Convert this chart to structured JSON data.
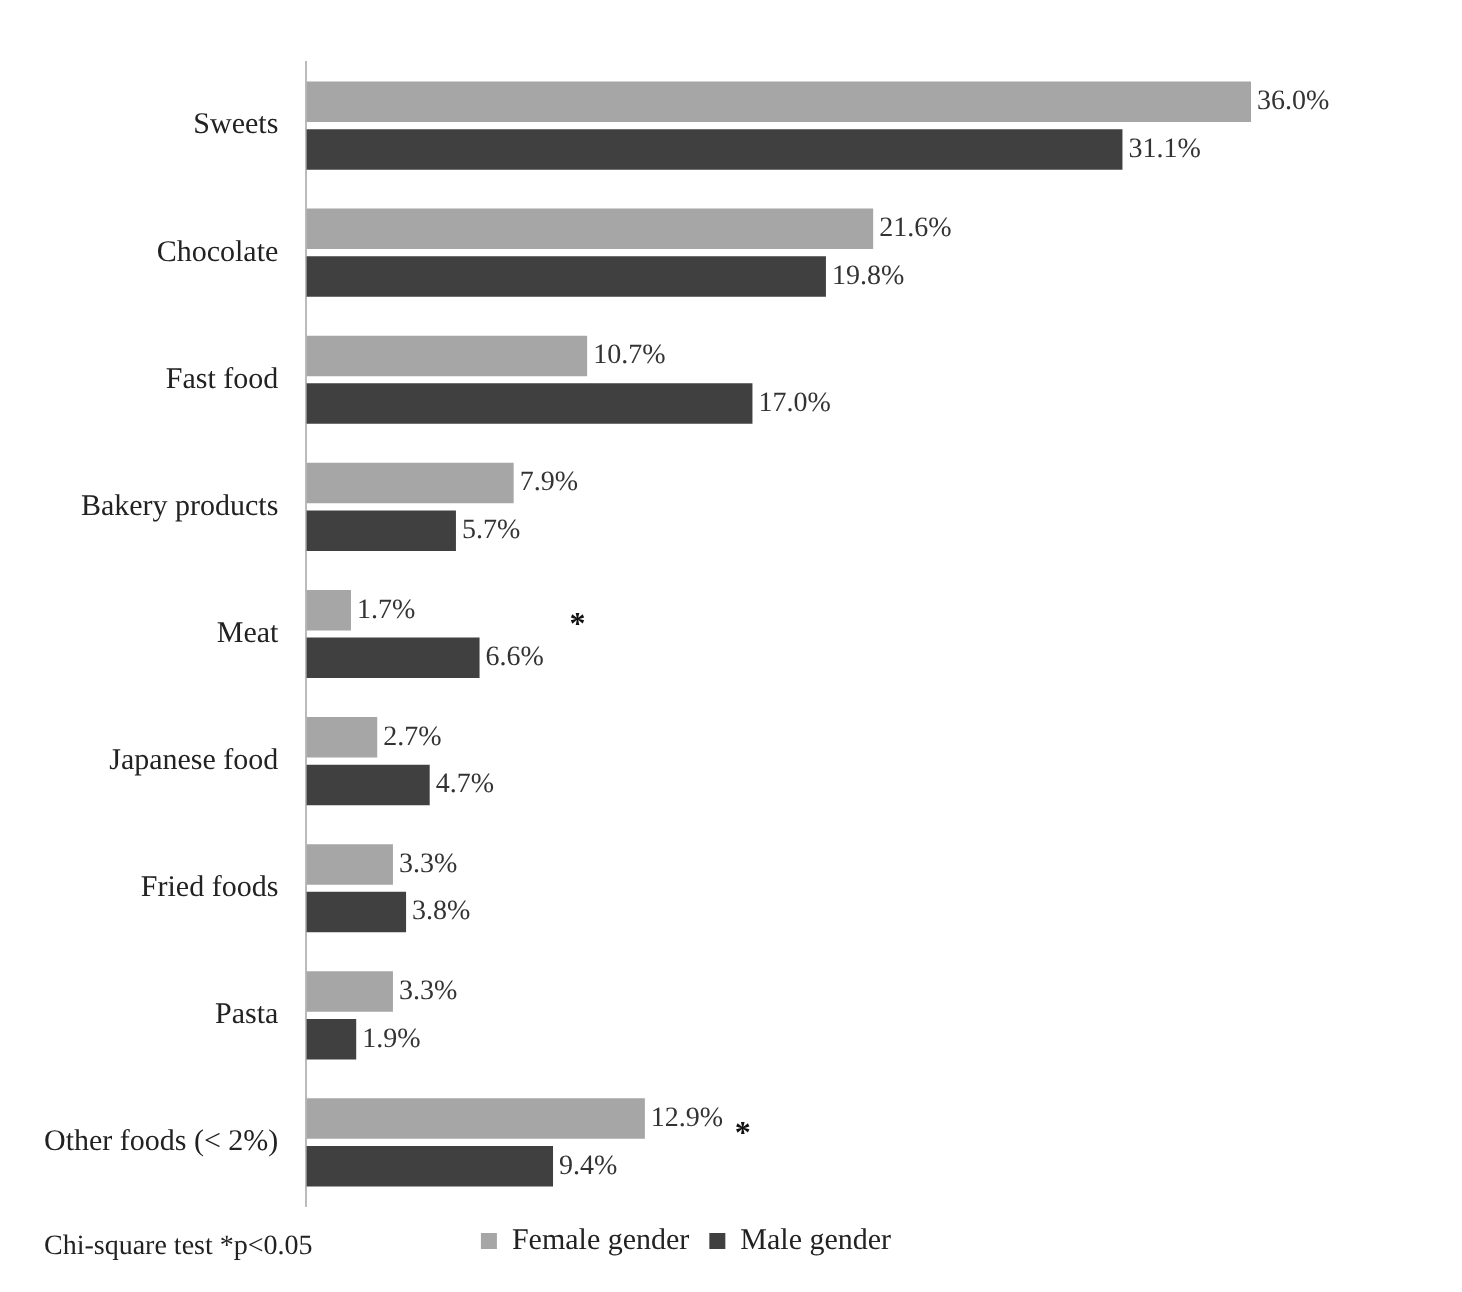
{
  "chart_data": {
    "type": "bar",
    "orientation": "horizontal",
    "categories": [
      "Sweets",
      "Chocolate",
      "Fast food",
      "Bakery products",
      "Meat",
      "Japanese food",
      "Fried foods",
      "Pasta",
      "Other foods (< 2%)"
    ],
    "series": [
      {
        "name": "Female gender",
        "color": "#a6a6a6",
        "values": [
          36.0,
          21.6,
          10.7,
          7.9,
          1.7,
          2.7,
          3.3,
          3.3,
          12.9
        ],
        "value_labels": [
          "36.0%",
          "21.6%",
          "10.7%",
          "7.9%",
          "1.7%",
          "2.7%",
          "3.3%",
          "3.3%",
          "12.9%"
        ]
      },
      {
        "name": "Male gender",
        "color": "#404040",
        "values": [
          31.1,
          19.8,
          17.0,
          5.7,
          6.6,
          4.7,
          3.8,
          1.9,
          9.4
        ],
        "value_labels": [
          "31.1%",
          "19.8%",
          "17.0%",
          "5.7%",
          "6.6%",
          "4.7%",
          "3.8%",
          "1.9%",
          "9.4%"
        ]
      }
    ],
    "grid": false,
    "legend": "bottom",
    "annotations": [
      {
        "text": "*",
        "x": 6.6,
        "y": "Meat"
      },
      {
        "text": "*",
        "x": 12.9,
        "y": "Other foods (< 2%)"
      },
      "Chi-square test *p<0.05"
    ]
  }
}
